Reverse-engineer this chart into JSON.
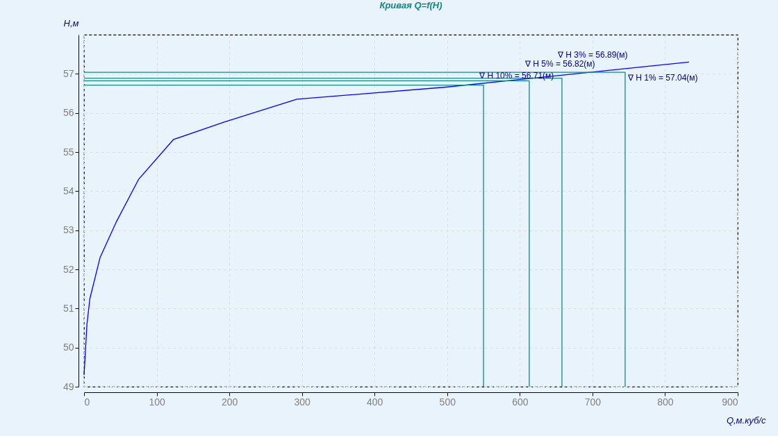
{
  "chart_data": {
    "type": "line",
    "title": "Кривая Q=f(H)",
    "xlabel": "Q,м.куб/с",
    "ylabel": "H,м",
    "x": [
      0,
      4,
      8,
      22,
      44,
      75,
      123,
      192,
      293,
      498,
      833
    ],
    "series": [
      {
        "color": "#0000ff",
        "values": [
          49.3,
          50.6,
          51.25,
          52.3,
          53.2,
          54.3,
          55.32,
          55.76,
          56.35,
          56.66,
          57.3
        ]
      },
      {
        "color": "#108888",
        "x": [
          0,
          550,
          550
        ],
        "values": [
          56.71,
          56.71,
          49
        ]
      },
      {
        "color": "#108888",
        "x": [
          0,
          613,
          613
        ],
        "values": [
          56.82,
          56.82,
          49
        ]
      },
      {
        "color": "#108888",
        "x": [
          0,
          658,
          658
        ],
        "values": [
          56.89,
          56.89,
          49
        ]
      },
      {
        "color": "#108888",
        "x": [
          0,
          745,
          745
        ],
        "values": [
          57.04,
          57.04,
          49
        ]
      }
    ],
    "xlim": [
      0,
      900
    ],
    "xticks": [
      0,
      100,
      200,
      300,
      400,
      500,
      600,
      700,
      800,
      900
    ],
    "ylim": [
      49,
      58
    ],
    "yticks": [
      49,
      50,
      51,
      52,
      53,
      54,
      55,
      56,
      57
    ],
    "grid": true,
    "marker": "none",
    "line_style": "solid",
    "annotations": [
      {
        "text": "∇ H 10% = 56.71(м)",
        "x": 550,
        "y": 56.71
      },
      {
        "text": "∇ H 5% = 56.82(м)",
        "x": 613,
        "y": 56.82
      },
      {
        "text": "∇ H 3% = 56.89(м)",
        "x": 658,
        "y": 56.89
      },
      {
        "text": "∇ H 1% = 57.04(м)",
        "x": 745,
        "y": 57.04
      }
    ]
  }
}
